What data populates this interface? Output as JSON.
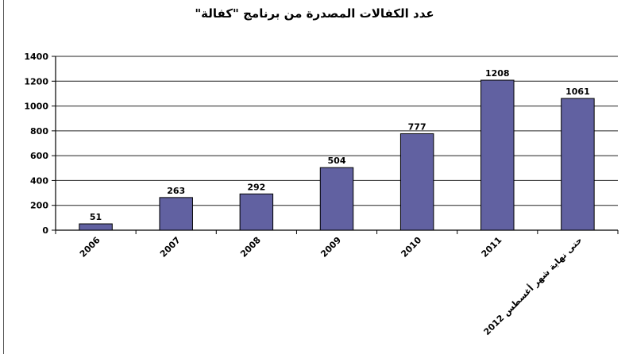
{
  "chart_data": {
    "type": "bar",
    "title": "عدد الكفالات المصدرة من برنامج \"كفالة\"",
    "categories": [
      "2006",
      "2007",
      "2008",
      "2009",
      "2010",
      "2011",
      "حتى نهاية شهر أغسطس 2012"
    ],
    "values": [
      51,
      263,
      292,
      504,
      777,
      1208,
      1061
    ],
    "ylim": [
      0,
      1400
    ],
    "yticks": [
      "0",
      "200",
      "400",
      "600",
      "800",
      "1000",
      "1200",
      "1400"
    ],
    "grid": true,
    "bar_color": "#6161a1"
  }
}
